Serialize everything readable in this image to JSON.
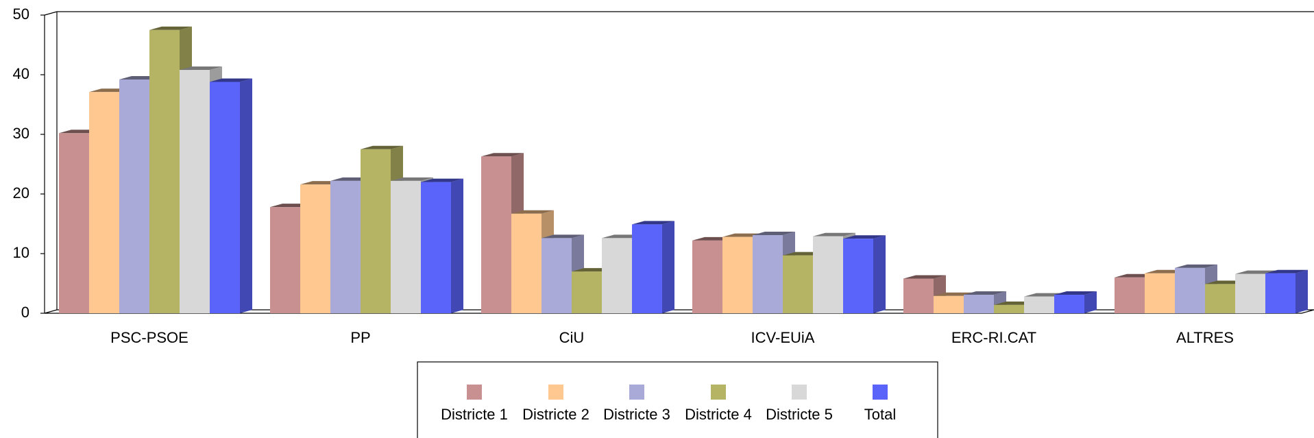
{
  "chart_data": {
    "type": "bar3d",
    "categories": [
      "PSC-PSOE",
      "PP",
      "CiU",
      "ICV-EUiA",
      "ERC-RI.CAT",
      "ALTRES"
    ],
    "series": [
      {
        "name": "Districte 1",
        "color": "#c89090",
        "values": [
          30.2,
          17.8,
          26.3,
          12.2,
          5.8,
          6.0
        ]
      },
      {
        "name": "Districte 2",
        "color": "#ffc890",
        "values": [
          37.1,
          21.6,
          16.7,
          12.8,
          2.9,
          6.7
        ]
      },
      {
        "name": "Districte 3",
        "color": "#aaaad8",
        "values": [
          39.2,
          22.2,
          12.6,
          13.1,
          3.1,
          7.6
        ]
      },
      {
        "name": "Districte 4",
        "color": "#b4b464",
        "values": [
          47.5,
          27.5,
          7.0,
          9.7,
          1.4,
          4.9
        ]
      },
      {
        "name": "Districte 5",
        "color": "#d8d8d8",
        "values": [
          40.8,
          22.2,
          12.6,
          12.9,
          2.8,
          6.6
        ]
      },
      {
        "name": "Total",
        "color": "#5a64fa",
        "values": [
          38.8,
          22.0,
          14.9,
          12.5,
          3.1,
          6.7
        ]
      }
    ],
    "ylim": [
      0,
      50
    ],
    "yticks": [
      0,
      10,
      20,
      30,
      40,
      50
    ],
    "legend": "bottom"
  }
}
